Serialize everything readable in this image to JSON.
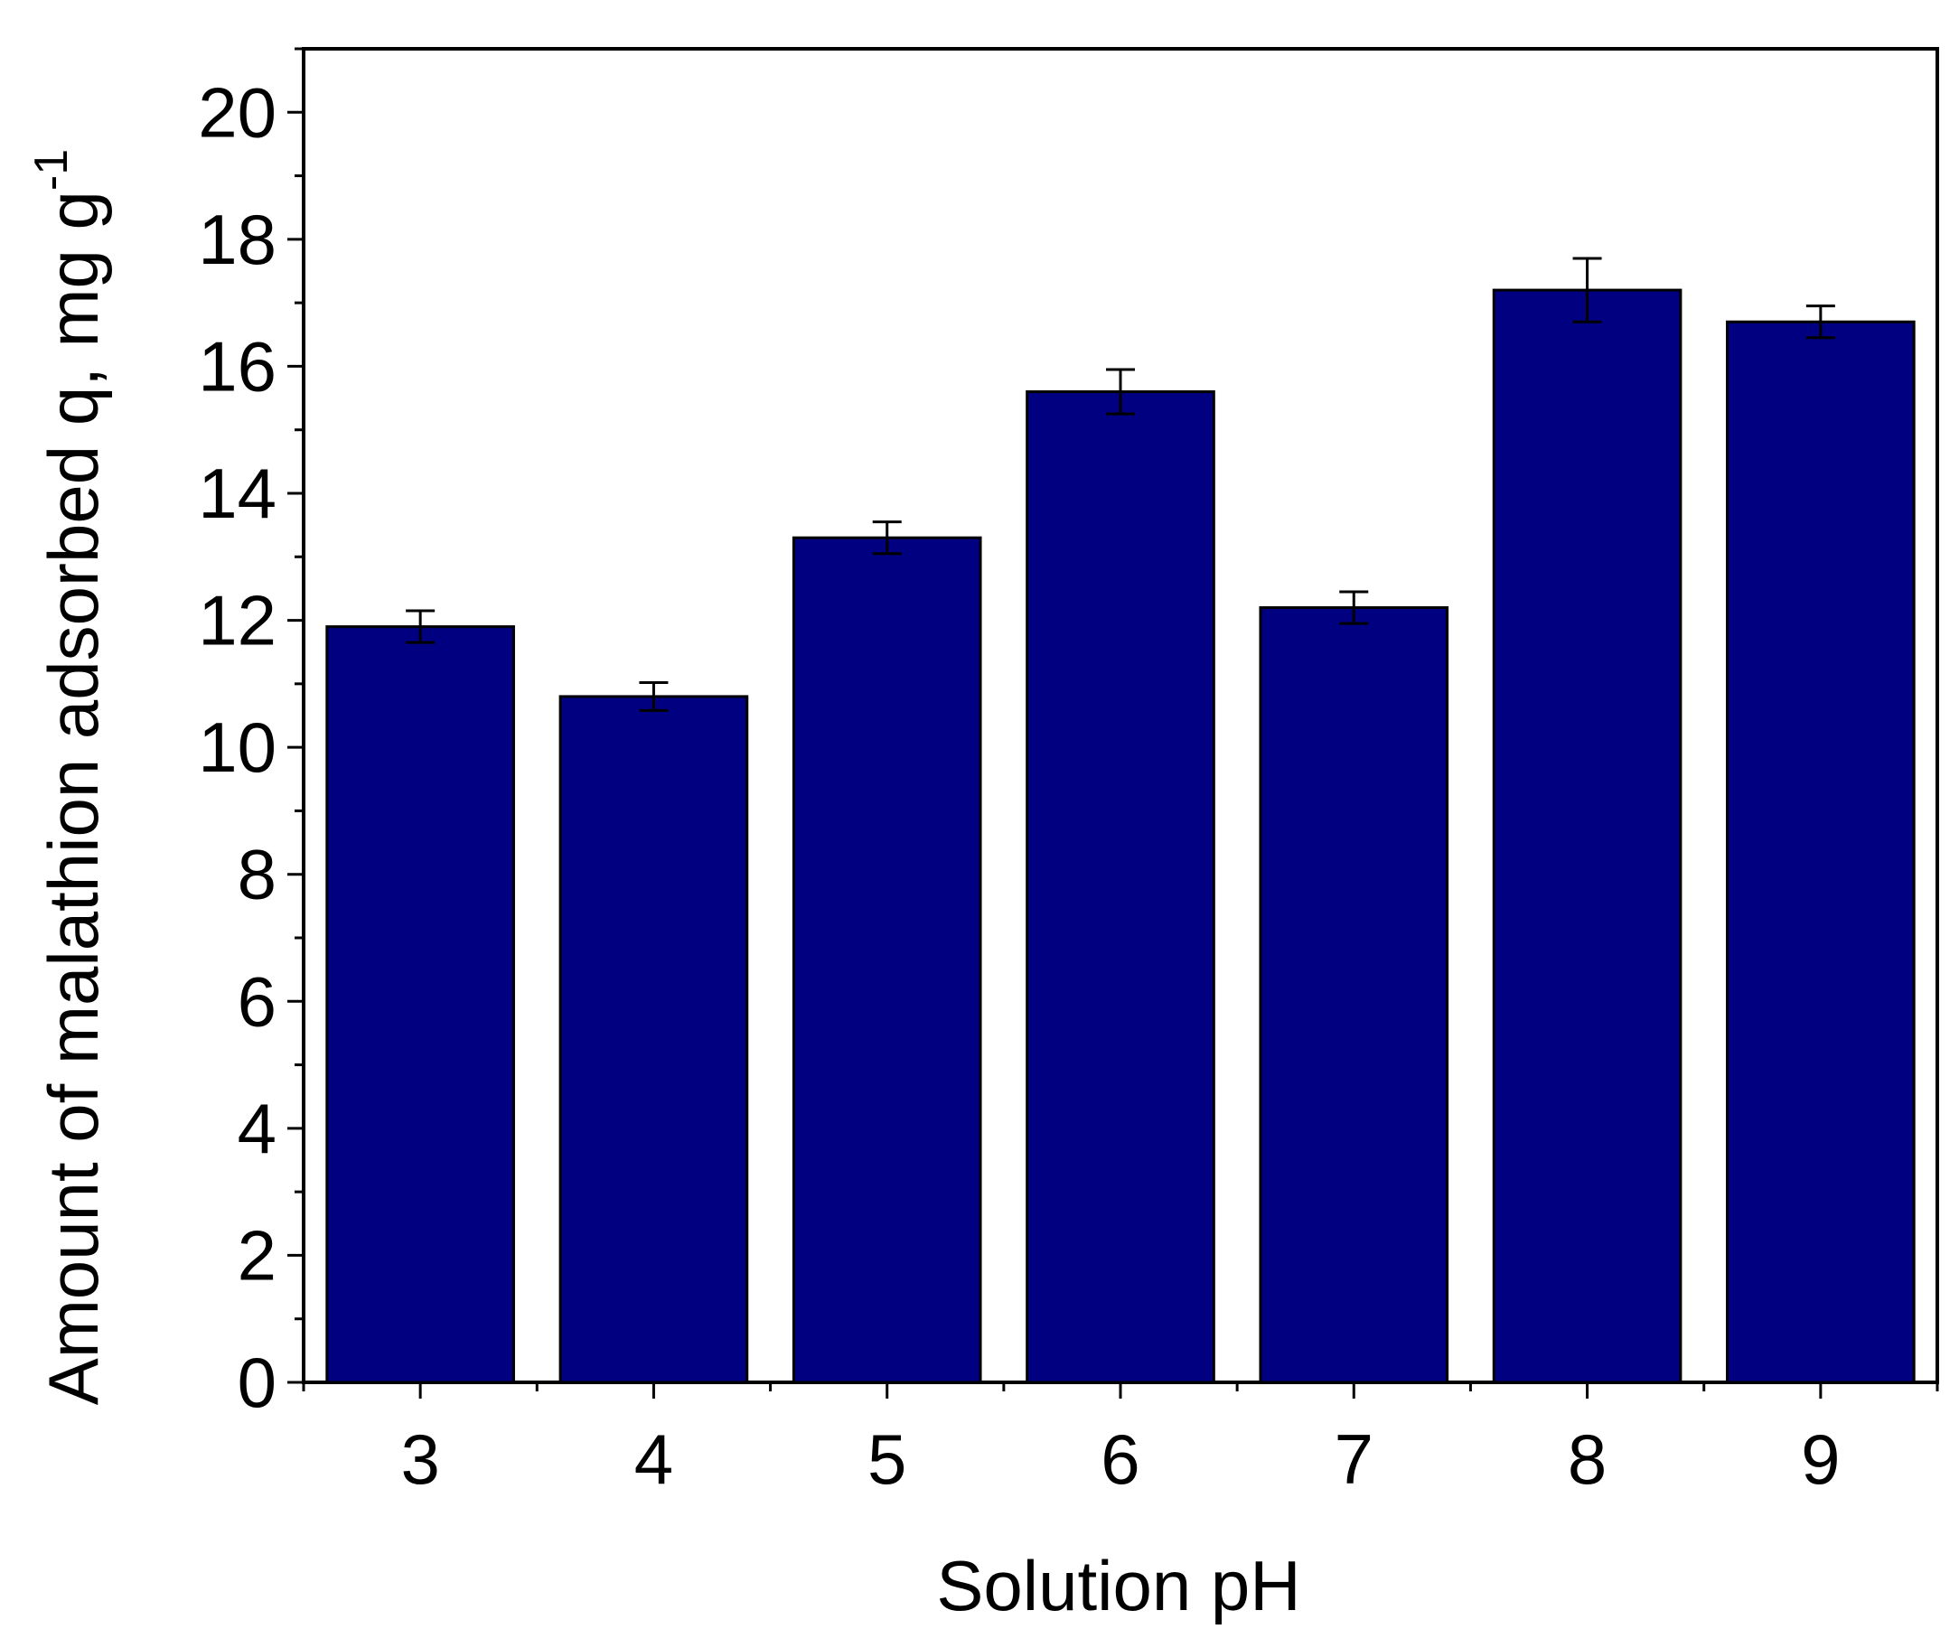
{
  "chart_data": {
    "type": "bar",
    "title": "",
    "xlabel": "Solution pH",
    "ylabel": {
      "main": "Amount of malathion adsorbed q, mg g",
      "superscript": "-1"
    },
    "categories": [
      "3",
      "4",
      "5",
      "6",
      "7",
      "8",
      "9"
    ],
    "values": [
      11.9,
      10.8,
      13.3,
      15.6,
      12.2,
      17.2,
      16.7
    ],
    "errors": [
      0.25,
      0.22,
      0.25,
      0.35,
      0.25,
      0.5,
      0.25
    ],
    "ylim": [
      0,
      21
    ],
    "yticks": [
      0,
      2,
      4,
      6,
      8,
      10,
      12,
      14,
      16,
      18,
      20
    ],
    "grid": false,
    "legend": "none",
    "bar_color": "#000080"
  }
}
